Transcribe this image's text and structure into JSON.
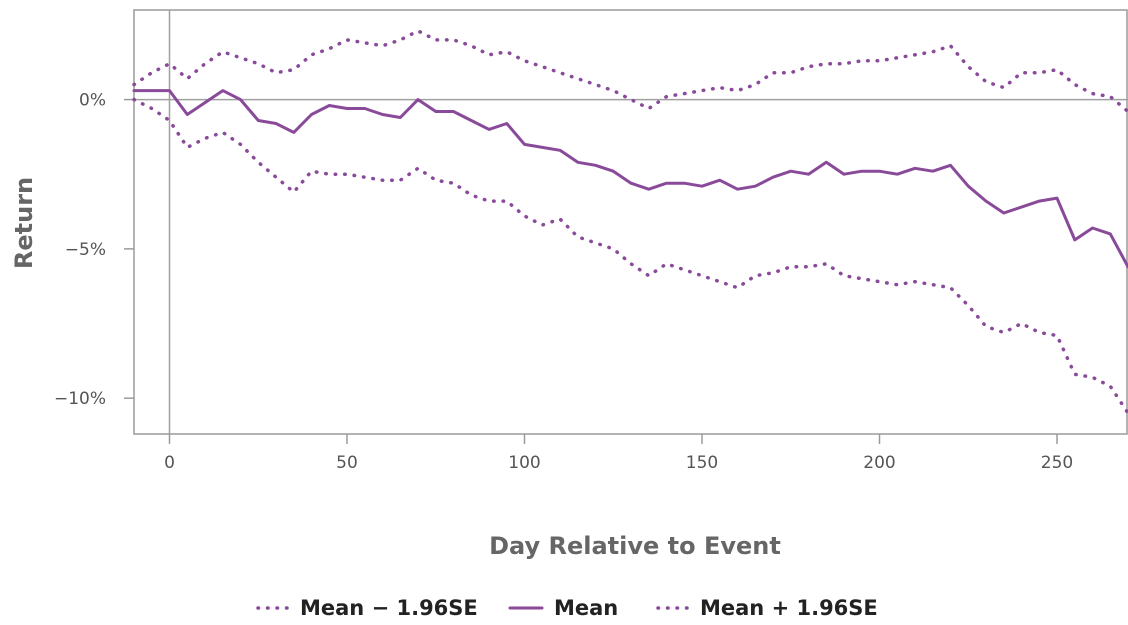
{
  "chart_data": {
    "type": "line",
    "title": "",
    "xlabel": "Day Relative to Event",
    "ylabel": "Return",
    "xlim": [
      -10,
      270
    ],
    "ylim": [
      -11.2,
      3.0
    ],
    "x_ticks": [
      0,
      50,
      100,
      150,
      200,
      250
    ],
    "y_ticks": [
      0,
      -5,
      -10
    ],
    "y_tick_labels": [
      "0%",
      "−5%",
      "−10%"
    ],
    "grid": false,
    "reference_lines": {
      "x": 0,
      "y": 0
    },
    "legend_position": "bottom",
    "series_color": "#8a4a9a",
    "x": [
      -10,
      -5,
      0,
      5,
      10,
      15,
      20,
      25,
      30,
      35,
      40,
      45,
      50,
      55,
      60,
      65,
      70,
      75,
      80,
      85,
      90,
      95,
      100,
      105,
      110,
      115,
      120,
      125,
      130,
      135,
      140,
      145,
      150,
      155,
      160,
      165,
      170,
      175,
      180,
      185,
      190,
      195,
      200,
      205,
      210,
      215,
      220,
      225,
      230,
      235,
      240,
      245,
      250,
      255,
      260,
      265,
      270
    ],
    "series": [
      {
        "name": "Mean − 1.96SE",
        "style": "dotted",
        "values": [
          0.0,
          -0.3,
          -0.7,
          -1.6,
          -1.3,
          -1.1,
          -1.5,
          -2.1,
          -2.6,
          -3.1,
          -2.4,
          -2.5,
          -2.5,
          -2.6,
          -2.7,
          -2.7,
          -2.3,
          -2.7,
          -2.8,
          -3.2,
          -3.4,
          -3.4,
          -3.9,
          -4.2,
          -4.0,
          -4.6,
          -4.8,
          -5.0,
          -5.5,
          -5.9,
          -5.5,
          -5.7,
          -5.9,
          -6.1,
          -6.3,
          -5.9,
          -5.8,
          -5.6,
          -5.6,
          -5.5,
          -5.9,
          -6.0,
          -6.1,
          -6.2,
          -6.1,
          -6.2,
          -6.3,
          -6.9,
          -7.6,
          -7.8,
          -7.5,
          -7.8,
          -7.9,
          -9.2,
          -9.3,
          -9.6,
          -10.5
        ]
      },
      {
        "name": "Mean",
        "style": "solid",
        "values": [
          0.3,
          0.3,
          0.3,
          -0.5,
          -0.1,
          0.3,
          0.0,
          -0.7,
          -0.8,
          -1.1,
          -0.5,
          -0.2,
          -0.3,
          -0.3,
          -0.5,
          -0.6,
          0.0,
          -0.4,
          -0.4,
          -0.7,
          -1.0,
          -0.8,
          -1.5,
          -1.6,
          -1.7,
          -2.1,
          -2.2,
          -2.4,
          -2.8,
          -3.0,
          -2.8,
          -2.8,
          -2.9,
          -2.7,
          -3.0,
          -2.9,
          -2.6,
          -2.4,
          -2.5,
          -2.1,
          -2.5,
          -2.4,
          -2.4,
          -2.5,
          -2.3,
          -2.4,
          -2.2,
          -2.9,
          -3.4,
          -3.8,
          -3.6,
          -3.4,
          -3.3,
          -4.7,
          -4.3,
          -4.5,
          -5.6
        ]
      },
      {
        "name": "Mean + 1.96SE",
        "style": "dotted",
        "values": [
          0.5,
          0.9,
          1.2,
          0.7,
          1.2,
          1.6,
          1.4,
          1.2,
          0.9,
          1.0,
          1.5,
          1.7,
          2.0,
          1.9,
          1.8,
          2.0,
          2.3,
          2.0,
          2.0,
          1.8,
          1.5,
          1.6,
          1.3,
          1.1,
          0.9,
          0.7,
          0.5,
          0.3,
          0.0,
          -0.3,
          0.1,
          0.2,
          0.3,
          0.4,
          0.3,
          0.5,
          0.9,
          0.9,
          1.1,
          1.2,
          1.2,
          1.3,
          1.3,
          1.4,
          1.5,
          1.6,
          1.8,
          1.1,
          0.6,
          0.4,
          0.9,
          0.9,
          1.0,
          0.5,
          0.2,
          0.1,
          -0.4
        ]
      }
    ]
  }
}
